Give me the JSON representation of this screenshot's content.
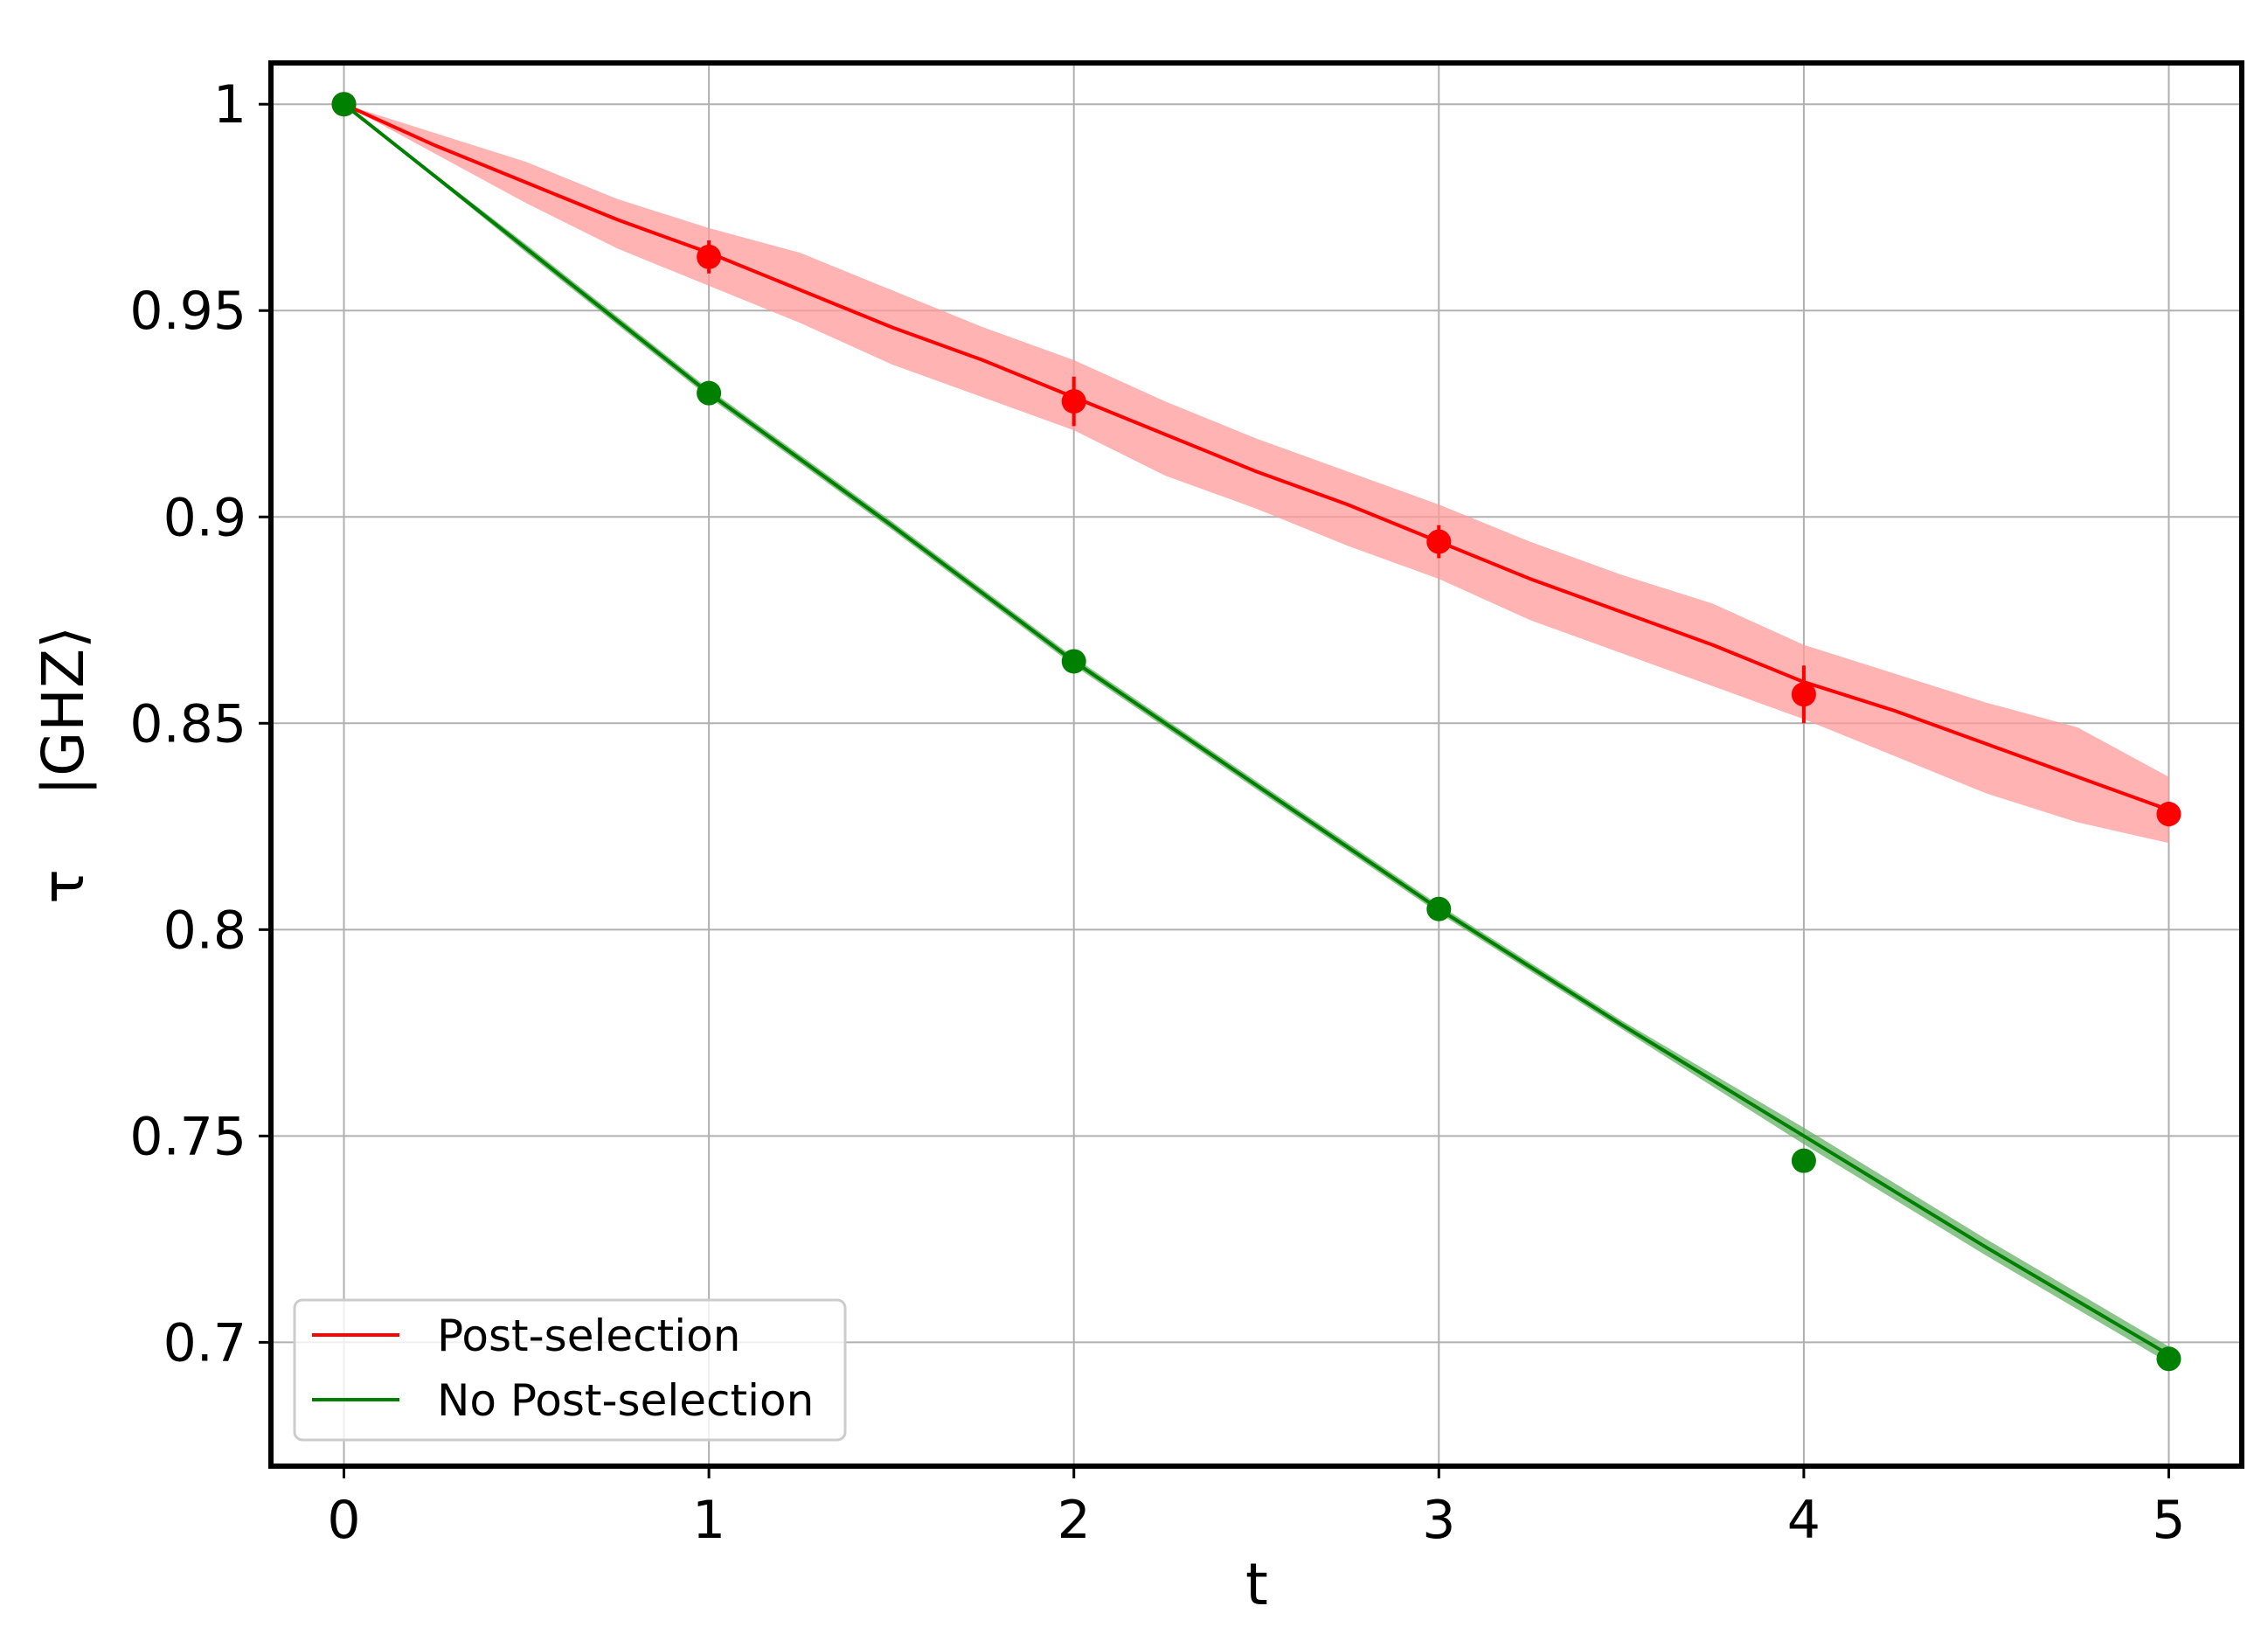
{
  "chart_data": {
    "type": "line",
    "xlabel": "t",
    "ylabel": "τ    |GHZ⟩",
    "xlim": [
      -0.2,
      5.2
    ],
    "ylim": [
      0.67,
      1.01
    ],
    "xticks": [
      0,
      1,
      2,
      3,
      4,
      5
    ],
    "xtick_labels": [
      "0",
      "1",
      "2",
      "3",
      "4",
      "5"
    ],
    "yticks": [
      0.7,
      0.75,
      0.8,
      0.85,
      0.9,
      0.95,
      1.0
    ],
    "ytick_labels": [
      "0.7",
      "0.75",
      "0.8",
      "0.85",
      "0.9",
      "0.95",
      "1"
    ],
    "grid": true,
    "legend_position": "lower-left",
    "series": [
      {
        "name": "Post-selection",
        "color": "#ff0000",
        "band_color": "#ff9999",
        "curve_x": [
          0,
          0.25,
          0.5,
          0.75,
          1,
          1.25,
          1.5,
          1.75,
          2,
          2.25,
          2.5,
          2.75,
          3,
          3.25,
          3.5,
          3.75,
          4,
          4.25,
          4.5,
          4.75,
          5
        ],
        "curve_y": [
          1.0,
          0.99,
          0.981,
          0.972,
          0.964,
          0.955,
          0.946,
          0.938,
          0.929,
          0.92,
          0.911,
          0.903,
          0.894,
          0.885,
          0.877,
          0.869,
          0.86,
          0.853,
          0.845,
          0.837,
          0.829
        ],
        "band_low": [
          1.0,
          0.988,
          0.976,
          0.965,
          0.956,
          0.947,
          0.937,
          0.929,
          0.921,
          0.91,
          0.902,
          0.893,
          0.885,
          0.875,
          0.867,
          0.859,
          0.851,
          0.842,
          0.833,
          0.826,
          0.821
        ],
        "band_high": [
          1.0,
          0.993,
          0.986,
          0.977,
          0.97,
          0.964,
          0.955,
          0.946,
          0.938,
          0.928,
          0.919,
          0.911,
          0.903,
          0.894,
          0.886,
          0.879,
          0.869,
          0.862,
          0.855,
          0.849,
          0.837
        ],
        "points_x": [
          0,
          1,
          2,
          3,
          4,
          5
        ],
        "points_y": [
          1.0,
          0.963,
          0.928,
          0.894,
          0.857,
          0.828
        ],
        "points_err": [
          0.0,
          0.004,
          0.006,
          0.004,
          0.007,
          0.003
        ]
      },
      {
        "name": "No Post-selection",
        "color": "#008000",
        "band_color": "#66b266",
        "curve_x": [
          0,
          0.5,
          1,
          1.5,
          2,
          2.5,
          3,
          3.5,
          4,
          4.5,
          5
        ],
        "curve_y": [
          1.0,
          0.965,
          0.93,
          0.898,
          0.865,
          0.835,
          0.805,
          0.777,
          0.75,
          0.723,
          0.697
        ],
        "band_low": [
          1.0,
          0.964,
          0.929,
          0.897,
          0.864,
          0.834,
          0.804,
          0.776,
          0.748,
          0.721,
          0.695
        ],
        "band_high": [
          1.0,
          0.966,
          0.931,
          0.899,
          0.866,
          0.836,
          0.806,
          0.778,
          0.752,
          0.725,
          0.699
        ],
        "points_x": [
          0,
          1,
          2,
          3,
          4,
          5
        ],
        "points_y": [
          1.0,
          0.93,
          0.865,
          0.805,
          0.744,
          0.696
        ],
        "points_err": [
          0,
          0,
          0,
          0,
          0,
          0
        ]
      }
    ]
  }
}
